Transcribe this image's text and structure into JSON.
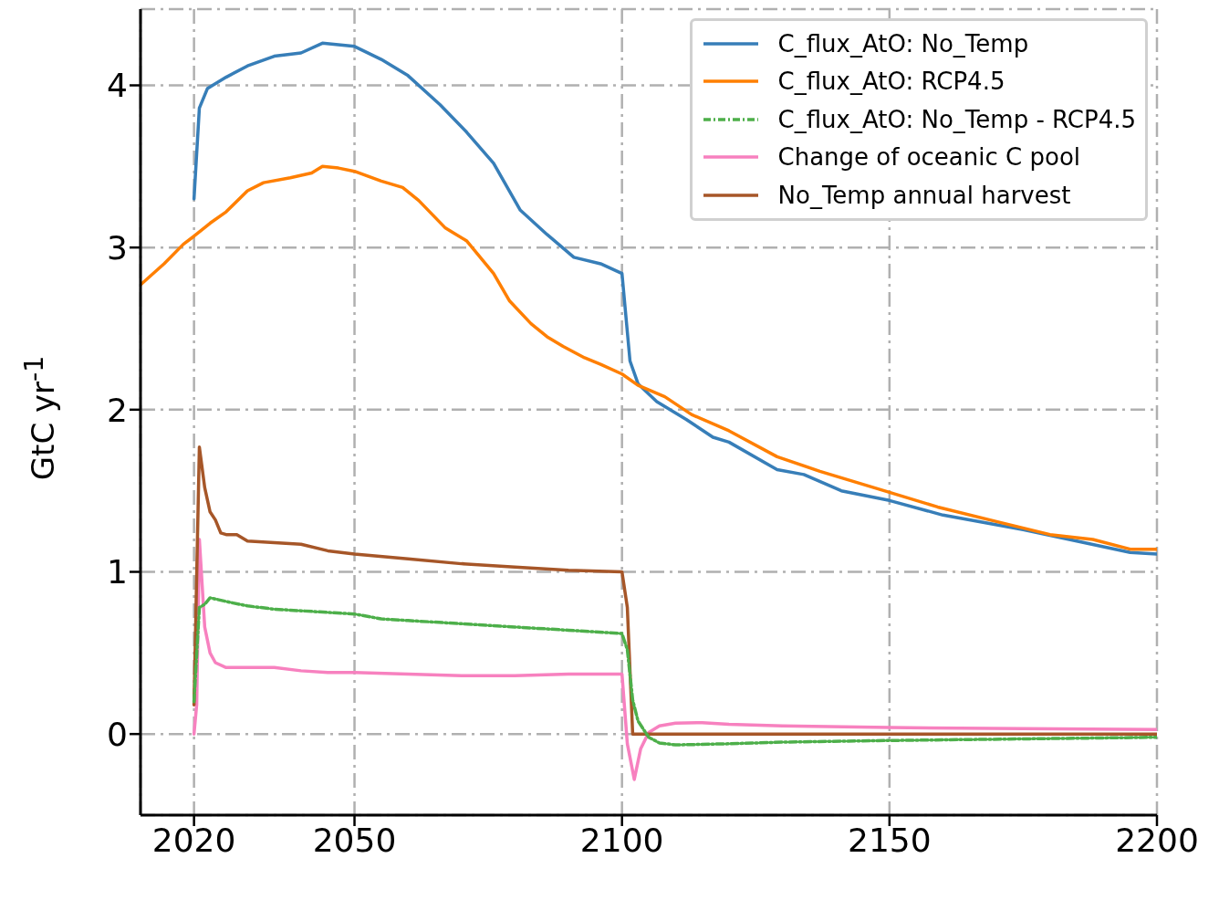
{
  "chart_data": {
    "type": "line",
    "ylabel": "GtC yr$^{-1}$",
    "xlim": [
      2010,
      2200
    ],
    "xticks": [
      2020,
      2050,
      2100,
      2150,
      2200
    ],
    "ylim": [
      -0.5,
      4.47
    ],
    "yticks": [
      0,
      1,
      2,
      3,
      4
    ],
    "grid": true,
    "legend": "top right",
    "line_style": "solid",
    "marker": "none",
    "series": [
      {
        "name": "C_flux_AtO: No_Temp",
        "color": "#377eb8",
        "x": [
          2020,
          2021,
          2022.5,
          2026,
          2030,
          2035,
          2040,
          2044,
          2050,
          2055,
          2060,
          2066,
          2071,
          2076,
          2081,
          2086,
          2091,
          2096,
          2100,
          2101.5,
          2103,
          2106.5,
          2112,
          2117,
          2120,
          2129,
          2134,
          2141,
          2150,
          2160,
          2175,
          2185,
          2195,
          2200
        ],
        "values": [
          3.3,
          3.86,
          3.98,
          4.05,
          4.12,
          4.18,
          4.2,
          4.26,
          4.24,
          4.16,
          4.06,
          3.88,
          3.71,
          3.52,
          3.23,
          3.08,
          2.94,
          2.9,
          2.84,
          2.3,
          2.16,
          2.05,
          1.94,
          1.83,
          1.8,
          1.63,
          1.6,
          1.5,
          1.44,
          1.35,
          1.26,
          1.19,
          1.12,
          1.11
        ]
      },
      {
        "name": "C_flux_AtO: RCP4.5",
        "color": "#ff7f00",
        "x": [
          2010,
          2014.4,
          2018,
          2020,
          2023,
          2026,
          2030,
          2033,
          2038,
          2042,
          2044,
          2047,
          2050,
          2055,
          2059,
          2062,
          2067,
          2071,
          2076,
          2079,
          2083,
          2086,
          2089,
          2093,
          2096,
          2100,
          2103,
          2108,
          2113,
          2120,
          2129,
          2137,
          2150,
          2159,
          2170,
          2180,
          2188,
          2195,
          2200
        ],
        "values": [
          2.77,
          2.9,
          3.02,
          3.07,
          3.15,
          3.22,
          3.35,
          3.4,
          3.43,
          3.46,
          3.5,
          3.49,
          3.47,
          3.41,
          3.37,
          3.29,
          3.12,
          3.04,
          2.84,
          2.67,
          2.53,
          2.45,
          2.39,
          2.32,
          2.28,
          2.22,
          2.15,
          2.08,
          1.97,
          1.87,
          1.71,
          1.62,
          1.49,
          1.4,
          1.31,
          1.23,
          1.2,
          1.14,
          1.14
        ]
      },
      {
        "name": "C_flux_AtO: No_Temp - RCP4.5",
        "color": "#4daf4a",
        "line_style": "dashdot",
        "x": [
          2020,
          2021,
          2022,
          2023,
          2027,
          2030,
          2035,
          2040,
          2045,
          2050,
          2055,
          2060,
          2070,
          2080,
          2090,
          2100,
          2101,
          2102,
          2103,
          2105,
          2107,
          2110,
          2120,
          2130,
          2150,
          2175,
          2200
        ],
        "values": [
          0.2,
          0.78,
          0.8,
          0.84,
          0.81,
          0.79,
          0.77,
          0.76,
          0.75,
          0.74,
          0.71,
          0.7,
          0.68,
          0.66,
          0.64,
          0.62,
          0.52,
          0.21,
          0.08,
          -0.02,
          -0.055,
          -0.067,
          -0.06,
          -0.05,
          -0.04,
          -0.03,
          -0.02
        ]
      },
      {
        "name": "Change of oceanic C pool",
        "color": "#f781bf",
        "x": [
          2020,
          2020.5,
          2021,
          2022,
          2023,
          2024,
          2026,
          2030,
          2035,
          2040,
          2045,
          2050,
          2060,
          2070,
          2080,
          2090,
          2100,
          2101,
          2102.3,
          2103.5,
          2105,
          2107,
          2110,
          2115,
          2120,
          2130,
          2150,
          2175,
          2200
        ],
        "values": [
          0,
          0.18,
          1.2,
          0.66,
          0.5,
          0.44,
          0.41,
          0.41,
          0.41,
          0.39,
          0.38,
          0.38,
          0.37,
          0.36,
          0.36,
          0.37,
          0.37,
          -0.06,
          -0.28,
          -0.09,
          0.01,
          0.05,
          0.067,
          0.07,
          0.06,
          0.05,
          0.04,
          0.033,
          0.027
        ]
      },
      {
        "name": "No_Temp annual harvest",
        "color": "#a65628",
        "x": [
          2020,
          2021,
          2022,
          2023,
          2024,
          2025,
          2026,
          2028,
          2030,
          2035,
          2040,
          2045,
          2050,
          2060,
          2070,
          2080,
          2090,
          2100,
          2101,
          2102,
          2200
        ],
        "values": [
          0.18,
          1.77,
          1.52,
          1.37,
          1.32,
          1.24,
          1.23,
          1.23,
          1.19,
          1.18,
          1.17,
          1.13,
          1.11,
          1.08,
          1.05,
          1.03,
          1.01,
          1.0,
          0.78,
          0,
          0
        ]
      }
    ]
  }
}
